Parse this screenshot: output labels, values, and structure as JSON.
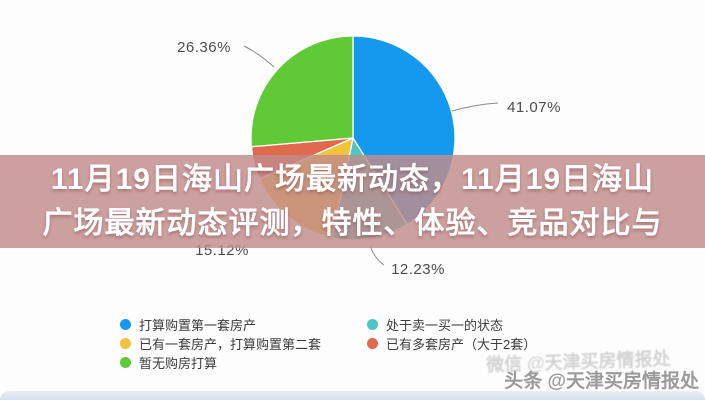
{
  "chart_data": {
    "type": "pie",
    "title": "",
    "start_angle": "top",
    "direction": "clockwise",
    "legend_position": "bottom",
    "series": [
      {
        "name": "打算购置第一套房产",
        "value": 41.07,
        "label": "41.07%",
        "color": "#1499ee"
      },
      {
        "name": "处于卖一买一的状态",
        "value": 12.23,
        "label": "12.23%",
        "color": "#4fc4c2"
      },
      {
        "name": "已有一套房产，打算购置第二套",
        "value": 15.12,
        "label": "15.12%",
        "color": "#f1c23b"
      },
      {
        "name": "已有多套房产（大于2套）",
        "value": 5.22,
        "label": "",
        "color": "#e06a4c"
      },
      {
        "name": "暂无购房打算",
        "value": 26.36,
        "label": "26.36%",
        "color": "#5fca36"
      }
    ]
  },
  "banner": {
    "line1": "11月19日海山广场最新动态，11月19日海山",
    "line2": "广场最新动态评测，特性、体验、竞品对比与"
  },
  "watermark": {
    "ghost": "微信 @天津买房情报处",
    "main": "头条 @天津买房情报处"
  }
}
